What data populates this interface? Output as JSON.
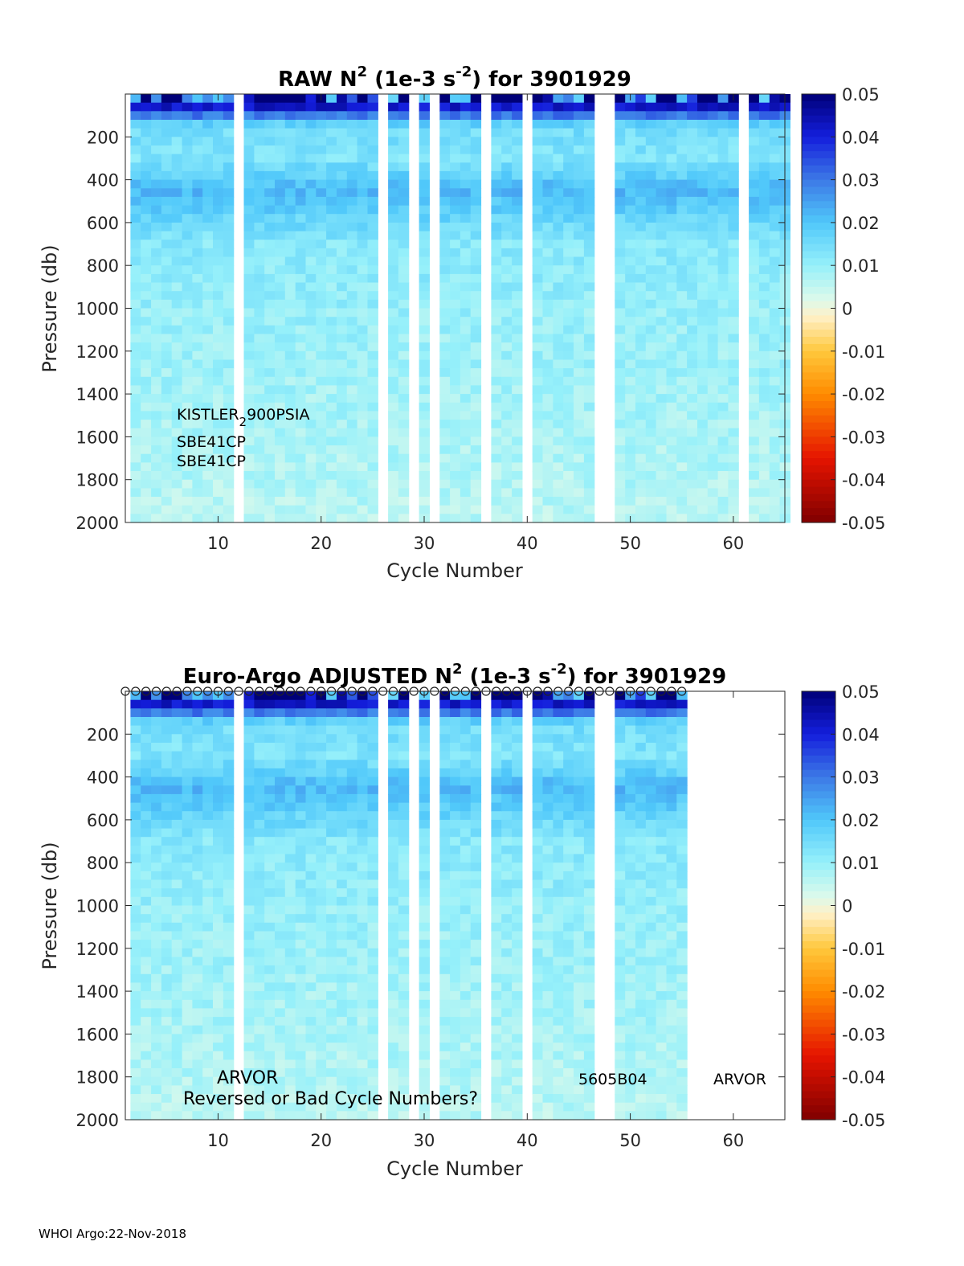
{
  "footer": "WHOI Argo:22-Nov-2018",
  "chart_data": [
    {
      "type": "heatmap",
      "title": "RAW N2 (1e-3 s-2) for 3901929",
      "title_parts": {
        "pre": "RAW N",
        "sup1": "2",
        "mid": " (1e-3 s",
        "sup2": "-2",
        "post": ") for 3901929"
      },
      "xlabel": "Cycle Number",
      "ylabel": "Pressure (db)",
      "xlim": [
        1,
        65
      ],
      "ylim": [
        0,
        2000
      ],
      "y_reversed": true,
      "xticks": [
        10,
        20,
        30,
        40,
        50,
        60
      ],
      "yticks": [
        200,
        400,
        600,
        800,
        1000,
        1200,
        1400,
        1600,
        1800,
        2000
      ],
      "colorbar": {
        "min": -0.05,
        "max": 0.05,
        "ticks": [
          "0.05",
          "0.04",
          "0.03",
          "0.02",
          "0.01",
          "0",
          "-0.01",
          "-0.02",
          "-0.03",
          "-0.04",
          "-0.05"
        ],
        "colormap": "jet-like diverging"
      },
      "annotations": {
        "sensor1_pre": "KISTLER",
        "sensor1_sub": "2",
        "sensor1_post": "900PSIA",
        "sensor2": "SBE41CP",
        "sensor3": "SBE41CP"
      },
      "missing_cycles": [
        12,
        26,
        29,
        31,
        36,
        40,
        47,
        48,
        61
      ],
      "cycles_range": [
        2,
        65
      ],
      "value_profile": [
        {
          "pressure": 50,
          "n2": 0.045
        },
        {
          "pressure": 150,
          "n2": 0.015
        },
        {
          "pressure": 300,
          "n2": 0.013
        },
        {
          "pressure": 450,
          "n2": 0.022
        },
        {
          "pressure": 700,
          "n2": 0.012
        },
        {
          "pressure": 1000,
          "n2": 0.01
        },
        {
          "pressure": 1500,
          "n2": 0.008
        },
        {
          "pressure": 2000,
          "n2": 0.006
        }
      ]
    },
    {
      "type": "heatmap",
      "title": "Euro-Argo ADJUSTED N2 (1e-3 s-2) for 3901929",
      "title_parts": {
        "pre": "Euro-Argo  ADJUSTED N",
        "sup1": "2",
        "mid": " (1e-3 s",
        "sup2": "-2",
        "post": ") for 3901929"
      },
      "xlabel": "Cycle Number",
      "ylabel": "Pressure (db)",
      "xlim": [
        1,
        65
      ],
      "ylim": [
        0,
        2000
      ],
      "y_reversed": true,
      "xticks": [
        10,
        20,
        30,
        40,
        50,
        60
      ],
      "yticks": [
        200,
        400,
        600,
        800,
        1000,
        1200,
        1400,
        1600,
        1800,
        2000
      ],
      "colorbar": {
        "min": -0.05,
        "max": 0.05,
        "ticks": [
          "0.05",
          "0.04",
          "0.03",
          "0.02",
          "0.01",
          "0",
          "-0.01",
          "-0.02",
          "-0.03",
          "-0.04",
          "-0.05"
        ],
        "colormap": "jet-like diverging"
      },
      "annotations": {
        "left_type": "ARVOR",
        "warning": "Reversed or Bad Cycle Numbers?",
        "firmware": "5605B04",
        "right_type": "ARVOR"
      },
      "missing_cycles": [
        12,
        26,
        29,
        31,
        36,
        40,
        47,
        48
      ],
      "cycles_range": [
        2,
        55
      ],
      "surface_markers": "o",
      "value_profile": [
        {
          "pressure": 50,
          "n2": 0.045
        },
        {
          "pressure": 150,
          "n2": 0.015
        },
        {
          "pressure": 300,
          "n2": 0.013
        },
        {
          "pressure": 450,
          "n2": 0.022
        },
        {
          "pressure": 700,
          "n2": 0.012
        },
        {
          "pressure": 1000,
          "n2": 0.01
        },
        {
          "pressure": 1500,
          "n2": 0.008
        },
        {
          "pressure": 2000,
          "n2": 0.006
        }
      ]
    }
  ]
}
